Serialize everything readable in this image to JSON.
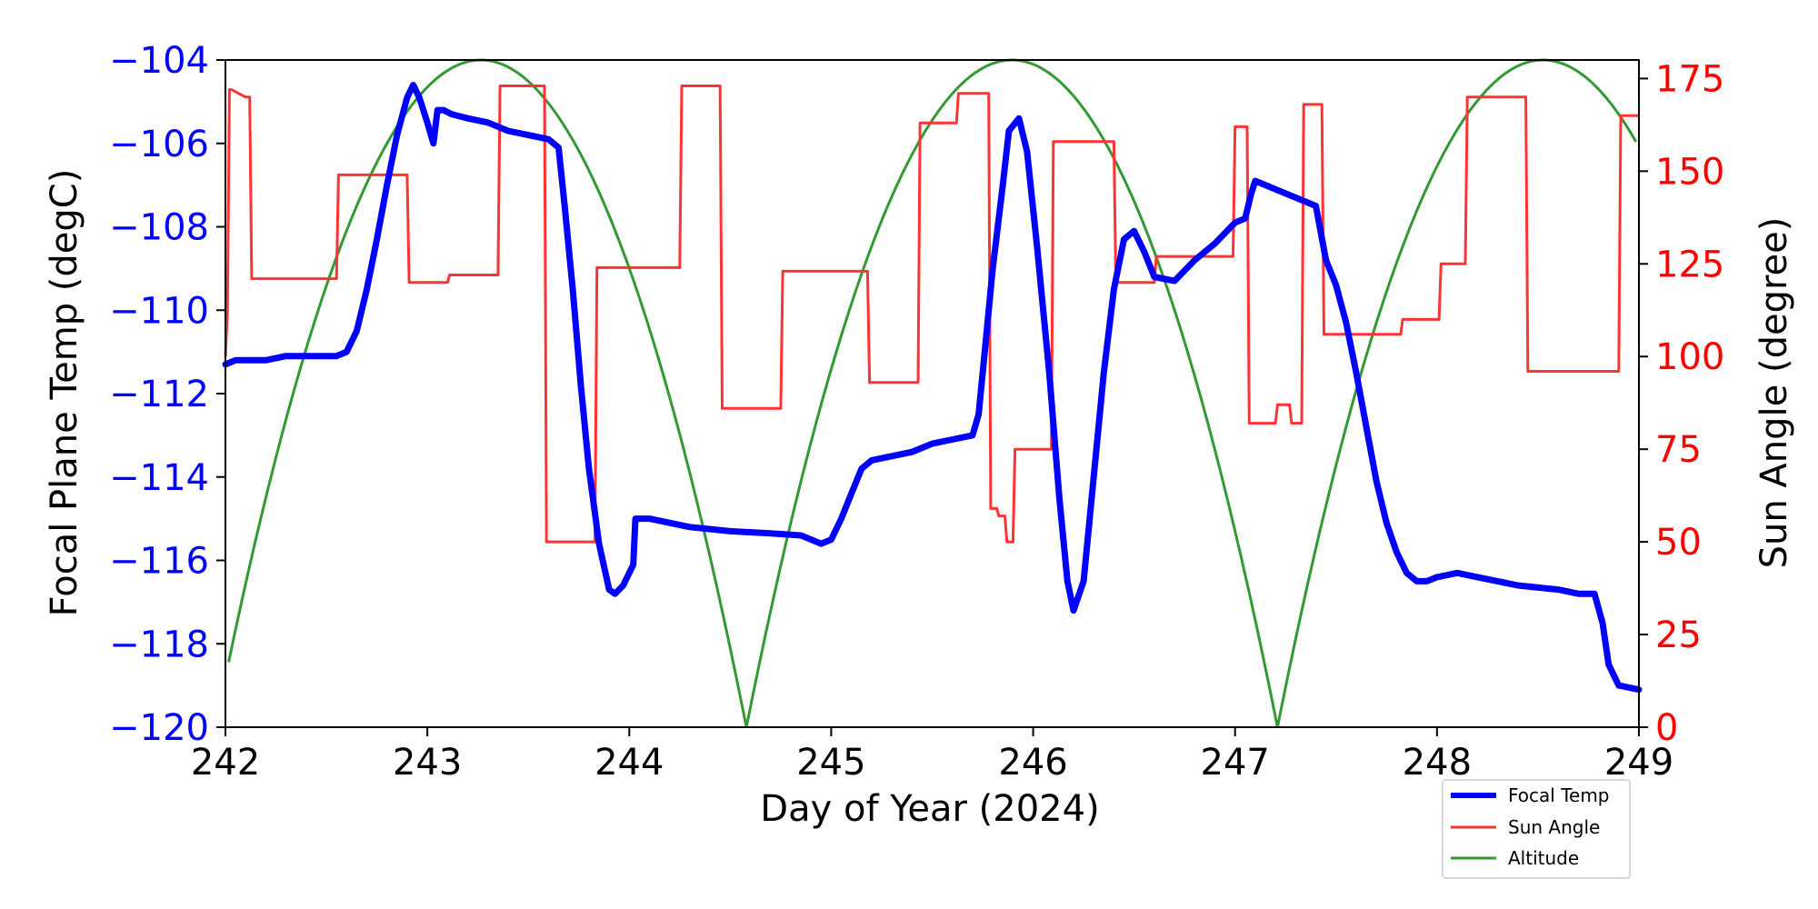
{
  "chart_data": {
    "type": "line",
    "xlabel": "Day of Year (2024)",
    "ylabel_left": "Focal Plane Temp (degC)",
    "ylabel_right": "Sun Angle (degree)",
    "xlim": [
      242,
      249
    ],
    "ylim_left": [
      -120,
      -104
    ],
    "ylim_right": [
      0,
      180
    ],
    "x_ticks": [
      "242",
      "243",
      "244",
      "245",
      "246",
      "247",
      "248",
      "249"
    ],
    "y_left_ticks": [
      "−120",
      "−118",
      "−116",
      "−114",
      "−112",
      "−110",
      "−108",
      "−106",
      "−104"
    ],
    "y_right_ticks": [
      "0",
      "25",
      "50",
      "75",
      "100",
      "125",
      "150",
      "175"
    ],
    "grid": false,
    "legend_position": "lower-right",
    "colors": {
      "left_axis": "#0000ff",
      "right_axis": "#ff0000",
      "focal": "#0000ff",
      "sun": "#ff3333",
      "altitude": "#339933"
    },
    "series": [
      {
        "name": "Focal Temp",
        "axis": "left",
        "x": [
          242.0,
          242.05,
          242.1,
          242.2,
          242.3,
          242.45,
          242.55,
          242.6,
          242.65,
          242.7,
          242.75,
          242.8,
          242.85,
          242.9,
          242.93,
          242.96,
          243.0,
          243.03,
          243.05,
          243.08,
          243.12,
          243.2,
          243.3,
          243.4,
          243.5,
          243.6,
          243.65,
          243.68,
          243.72,
          243.76,
          243.8,
          243.85,
          243.9,
          243.93,
          243.97,
          244.02,
          244.03,
          244.1,
          244.2,
          244.3,
          244.5,
          244.7,
          244.85,
          244.95,
          245.0,
          245.05,
          245.1,
          245.15,
          245.2,
          245.3,
          245.4,
          245.5,
          245.6,
          245.7,
          245.73,
          245.76,
          245.8,
          245.85,
          245.88,
          245.93,
          245.97,
          246.02,
          246.08,
          246.13,
          246.17,
          246.2,
          246.25,
          246.3,
          246.35,
          246.4,
          246.45,
          246.5,
          246.55,
          246.6,
          246.7,
          246.8,
          246.9,
          247.0,
          247.05,
          247.08,
          247.1,
          247.2,
          247.3,
          247.4,
          247.45,
          247.5,
          247.55,
          247.6,
          247.65,
          247.7,
          247.75,
          247.8,
          247.85,
          247.9,
          247.95,
          248.0,
          248.1,
          248.2,
          248.3,
          248.4,
          248.6,
          248.7,
          248.78,
          248.82,
          248.85,
          248.9,
          249.0
        ],
        "values": [
          -111.3,
          -111.2,
          -111.2,
          -111.2,
          -111.1,
          -111.1,
          -111.1,
          -111.0,
          -110.5,
          -109.5,
          -108.3,
          -107.0,
          -105.8,
          -104.9,
          -104.6,
          -104.9,
          -105.5,
          -106.0,
          -105.2,
          -105.2,
          -105.3,
          -105.4,
          -105.5,
          -105.7,
          -105.8,
          -105.9,
          -106.1,
          -107.5,
          -109.5,
          -111.8,
          -113.8,
          -115.6,
          -116.7,
          -116.8,
          -116.6,
          -116.1,
          -115.0,
          -115.0,
          -115.1,
          -115.2,
          -115.3,
          -115.35,
          -115.4,
          -115.6,
          -115.5,
          -115.0,
          -114.4,
          -113.8,
          -113.6,
          -113.5,
          -113.4,
          -113.2,
          -113.1,
          -113.0,
          -112.5,
          -111.0,
          -109.0,
          -107.0,
          -105.7,
          -105.4,
          -106.2,
          -108.5,
          -111.5,
          -114.5,
          -116.5,
          -117.2,
          -116.5,
          -114.0,
          -111.5,
          -109.5,
          -108.3,
          -108.1,
          -108.6,
          -109.2,
          -109.3,
          -108.8,
          -108.4,
          -107.9,
          -107.8,
          -107.2,
          -106.9,
          -107.1,
          -107.3,
          -107.5,
          -108.8,
          -109.4,
          -110.3,
          -111.5,
          -112.8,
          -114.1,
          -115.1,
          -115.8,
          -116.3,
          -116.5,
          -116.5,
          -116.4,
          -116.3,
          -116.4,
          -116.5,
          -116.6,
          -116.7,
          -116.8,
          -116.8,
          -117.5,
          -118.5,
          -119.0,
          -119.1
        ]
      },
      {
        "name": "Sun Angle",
        "axis": "right",
        "x": [
          242.0,
          242.01,
          242.02,
          242.03,
          242.1,
          242.12,
          242.13,
          242.55,
          242.56,
          242.9,
          242.91,
          243.1,
          243.11,
          243.35,
          243.36,
          243.58,
          243.59,
          243.83,
          243.84,
          244.25,
          244.26,
          244.45,
          244.46,
          244.75,
          244.76,
          245.18,
          245.19,
          245.43,
          245.44,
          245.62,
          245.63,
          245.78,
          245.79,
          245.82,
          245.83,
          245.86,
          245.87,
          245.9,
          245.91,
          245.95,
          245.96,
          246.09,
          246.1,
          246.4,
          246.41,
          246.6,
          246.61,
          246.99,
          247.0,
          247.06,
          247.07,
          247.2,
          247.21,
          247.27,
          247.28,
          247.33,
          247.34,
          247.43,
          247.44,
          247.82,
          247.83,
          248.01,
          248.02,
          248.14,
          248.15,
          248.44,
          248.45,
          248.9,
          248.91,
          249.0
        ],
        "values": [
          100,
          112,
          172,
          172,
          170,
          170,
          121,
          121,
          149,
          149,
          120,
          120,
          122,
          122,
          173,
          173,
          50,
          50,
          124,
          124,
          173,
          173,
          86,
          86,
          123,
          123,
          93,
          93,
          163,
          163,
          171,
          171,
          59,
          59,
          57,
          57,
          50,
          50,
          75,
          75,
          75,
          75,
          158,
          158,
          120,
          120,
          127,
          127,
          162,
          162,
          82,
          82,
          87,
          87,
          82,
          82,
          168,
          168,
          106,
          106,
          110,
          110,
          125,
          125,
          170,
          170,
          96,
          96,
          165,
          165
        ]
      },
      {
        "name": "Altitude",
        "axis": "right",
        "type": "parabolic-arcs",
        "arcs": [
          [
            241.95,
            244.58,
            180
          ],
          [
            244.58,
            247.21,
            180
          ],
          [
            247.21,
            249.84,
            180
          ]
        ]
      }
    ]
  }
}
